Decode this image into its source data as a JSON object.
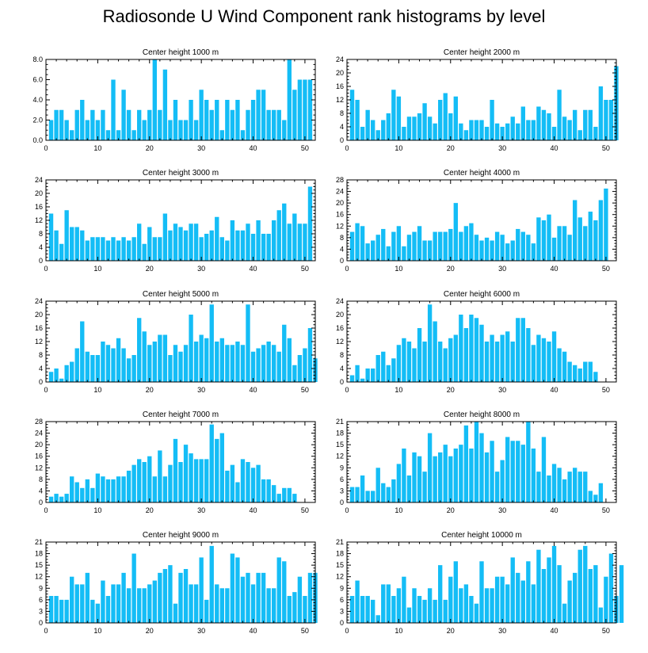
{
  "figure": {
    "title": "Radiosonde U Wind Component rank histograms by level",
    "bar_color": "#14bdf6",
    "axis_color": "#000000"
  },
  "chart_data": [
    {
      "type": "bar",
      "title": "Center height 1000 m",
      "x_range": [
        0,
        52
      ],
      "ylim": [
        0,
        8
      ],
      "yticks": [
        0,
        2,
        4,
        6,
        8
      ],
      "ytick_labels": [
        "0.0",
        "2.0",
        "4.0",
        "6.0",
        "8.0"
      ],
      "xticks": [
        0,
        10,
        20,
        30,
        40,
        50
      ],
      "values": [
        2,
        3,
        3,
        2,
        1,
        3,
        4,
        2,
        3,
        2,
        3,
        1,
        6,
        1,
        5,
        3,
        1,
        3,
        2,
        3,
        8,
        3,
        7,
        2,
        4,
        2,
        2,
        4,
        2,
        5,
        4,
        3,
        4,
        1,
        4,
        3,
        4,
        1,
        3,
        4,
        5,
        5,
        3,
        3,
        3,
        2,
        8,
        5,
        6,
        6,
        6
      ]
    },
    {
      "type": "bar",
      "title": "Center height 2000 m",
      "x_range": [
        0,
        52
      ],
      "ylim": [
        0,
        24
      ],
      "yticks": [
        0,
        4,
        8,
        12,
        16,
        20,
        24
      ],
      "ytick_labels": [
        "0",
        "4",
        "8",
        "12",
        "16",
        "20",
        "24"
      ],
      "xticks": [
        0,
        10,
        20,
        30,
        40,
        50
      ],
      "values": [
        15,
        12,
        4,
        9,
        6,
        3,
        6,
        8,
        15,
        13,
        4,
        7,
        7,
        8,
        11,
        7,
        5,
        12,
        14,
        8,
        13,
        5,
        3,
        6,
        6,
        6,
        4,
        12,
        5,
        4,
        5,
        7,
        5,
        10,
        6,
        6,
        10,
        9,
        8,
        4,
        15,
        7,
        6,
        9,
        3,
        9,
        9,
        4,
        16,
        12,
        12,
        22
      ]
    },
    {
      "type": "bar",
      "title": "Center height 3000 m",
      "x_range": [
        0,
        52
      ],
      "ylim": [
        0,
        24
      ],
      "yticks": [
        0,
        4,
        8,
        12,
        16,
        20,
        24
      ],
      "ytick_labels": [
        "0",
        "4",
        "8",
        "12",
        "16",
        "20",
        "24"
      ],
      "xticks": [
        0,
        10,
        20,
        30,
        40,
        50
      ],
      "values": [
        14,
        9,
        5,
        15,
        10,
        10,
        9,
        6,
        7,
        7,
        7,
        6,
        7,
        6,
        7,
        6,
        7,
        11,
        5,
        10,
        7,
        7,
        14,
        9,
        11,
        10,
        9,
        11,
        11,
        7,
        8,
        9,
        13,
        7,
        6,
        12,
        9,
        9,
        11,
        8,
        12,
        8,
        8,
        12,
        15,
        17,
        11,
        14,
        11,
        11,
        22
      ]
    },
    {
      "type": "bar",
      "title": "Center height 4000 m",
      "x_range": [
        0,
        52
      ],
      "ylim": [
        0,
        28
      ],
      "yticks": [
        0,
        4,
        8,
        12,
        16,
        20,
        24,
        28
      ],
      "ytick_labels": [
        "0",
        "4",
        "8",
        "12",
        "16",
        "20",
        "24",
        "28"
      ],
      "xticks": [
        0,
        10,
        20,
        30,
        40,
        50
      ],
      "values": [
        10,
        13,
        12,
        6,
        7,
        9,
        11,
        5,
        10,
        12,
        5,
        9,
        10,
        12,
        7,
        7,
        10,
        10,
        10,
        11,
        20,
        10,
        12,
        13,
        9,
        7,
        8,
        7,
        10,
        9,
        6,
        7,
        11,
        10,
        9,
        6,
        15,
        14,
        16,
        8,
        12,
        12,
        9,
        21,
        15,
        12,
        17,
        14,
        21,
        25
      ]
    },
    {
      "type": "bar",
      "title": "Center height 5000 m",
      "x_range": [
        0,
        52
      ],
      "ylim": [
        0,
        24
      ],
      "yticks": [
        0,
        4,
        8,
        12,
        16,
        20,
        24
      ],
      "ytick_labels": [
        "0",
        "4",
        "8",
        "12",
        "16",
        "20",
        "24"
      ],
      "xticks": [
        0,
        10,
        20,
        30,
        40,
        50
      ],
      "values": [
        3,
        4,
        1,
        5,
        6,
        10,
        18,
        9,
        8,
        8,
        12,
        11,
        10,
        13,
        10,
        7,
        8,
        19,
        15,
        11,
        12,
        14,
        14,
        8,
        11,
        9,
        11,
        20,
        12,
        14,
        13,
        23,
        12,
        13,
        11,
        11,
        12,
        11,
        23,
        9,
        10,
        11,
        12,
        11,
        9,
        17,
        13,
        5,
        8,
        10,
        16,
        7
      ]
    },
    {
      "type": "bar",
      "title": "Center height 6000 m",
      "x_range": [
        0,
        52
      ],
      "ylim": [
        0,
        24
      ],
      "yticks": [
        0,
        4,
        8,
        12,
        16,
        20,
        24
      ],
      "ytick_labels": [
        "0",
        "4",
        "8",
        "12",
        "16",
        "20",
        "24"
      ],
      "xticks": [
        0,
        10,
        20,
        30,
        40,
        50
      ],
      "values": [
        2,
        5,
        1,
        4,
        4,
        8,
        9,
        5,
        7,
        11,
        13,
        12,
        10,
        16,
        12,
        23,
        18,
        12,
        10,
        13,
        14,
        20,
        16,
        20,
        19,
        17,
        12,
        14,
        12,
        14,
        15,
        12,
        19,
        19,
        16,
        11,
        14,
        13,
        12,
        15,
        10,
        9,
        6,
        5,
        4,
        6,
        6,
        3
      ]
    },
    {
      "type": "bar",
      "title": "Center height 7000 m",
      "x_range": [
        0,
        52
      ],
      "ylim": [
        0,
        28
      ],
      "yticks": [
        0,
        4,
        8,
        12,
        16,
        20,
        24,
        28
      ],
      "ytick_labels": [
        "0",
        "4",
        "8",
        "12",
        "16",
        "20",
        "24",
        "28"
      ],
      "xticks": [
        0,
        10,
        20,
        30,
        40,
        50
      ],
      "values": [
        2,
        3,
        2,
        3,
        9,
        7,
        5,
        8,
        5,
        10,
        9,
        8,
        8,
        9,
        9,
        11,
        13,
        15,
        14,
        16,
        9,
        18,
        9,
        13,
        22,
        14,
        20,
        17,
        15,
        15,
        15,
        27,
        22,
        24,
        11,
        13,
        7,
        15,
        14,
        12,
        13,
        8,
        8,
        6,
        3,
        5,
        5,
        3
      ]
    },
    {
      "type": "bar",
      "title": "Center height 8000 m",
      "x_range": [
        0,
        52
      ],
      "ylim": [
        0,
        21
      ],
      "yticks": [
        0,
        3,
        6,
        9,
        12,
        15,
        18,
        21
      ],
      "ytick_labels": [
        "0",
        "3",
        "6",
        "9",
        "12",
        "15",
        "18",
        "21"
      ],
      "xticks": [
        0,
        10,
        20,
        30,
        40,
        50
      ],
      "values": [
        4,
        4,
        7,
        3,
        3,
        9,
        5,
        4,
        6,
        10,
        14,
        7,
        13,
        12,
        8,
        18,
        12,
        13,
        15,
        12,
        14,
        15,
        20,
        14,
        21,
        18,
        13,
        16,
        8,
        11,
        17,
        16,
        16,
        15,
        21,
        14,
        8,
        17,
        7,
        10,
        9,
        6,
        8,
        9,
        8,
        8,
        3,
        2,
        5
      ]
    },
    {
      "type": "bar",
      "title": "Center height 9000 m",
      "x_range": [
        0,
        52
      ],
      "ylim": [
        0,
        21
      ],
      "yticks": [
        0,
        3,
        6,
        9,
        12,
        15,
        18,
        21
      ],
      "ytick_labels": [
        "0",
        "3",
        "6",
        "9",
        "12",
        "15",
        "18",
        "21"
      ],
      "xticks": [
        0,
        10,
        20,
        30,
        40,
        50
      ],
      "values": [
        7,
        7,
        6,
        6,
        12,
        10,
        10,
        13,
        6,
        5,
        11,
        7,
        10,
        10,
        13,
        9,
        18,
        9,
        9,
        10,
        11,
        13,
        14,
        15,
        5,
        13,
        14,
        10,
        10,
        17,
        6,
        20,
        10,
        9,
        9,
        18,
        17,
        12,
        13,
        10,
        13,
        13,
        9,
        9,
        17,
        16,
        7,
        8,
        12,
        7,
        13,
        13
      ]
    },
    {
      "type": "bar",
      "title": "Center height 10000 m",
      "x_range": [
        0,
        52
      ],
      "ylim": [
        0,
        21
      ],
      "yticks": [
        0,
        3,
        6,
        9,
        12,
        15,
        18,
        21
      ],
      "ytick_labels": [
        "0",
        "3",
        "6",
        "9",
        "12",
        "15",
        "18",
        "21"
      ],
      "xticks": [
        0,
        10,
        20,
        30,
        40,
        50
      ],
      "values": [
        7,
        11,
        7,
        7,
        6,
        2,
        10,
        10,
        7,
        9,
        12,
        4,
        9,
        7,
        6,
        9,
        6,
        15,
        6,
        12,
        16,
        9,
        10,
        7,
        5,
        16,
        9,
        9,
        12,
        12,
        10,
        17,
        13,
        11,
        16,
        10,
        19,
        14,
        17,
        20,
        15,
        5,
        11,
        13,
        19,
        20,
        14,
        15,
        4,
        12,
        18,
        7,
        15
      ]
    }
  ]
}
